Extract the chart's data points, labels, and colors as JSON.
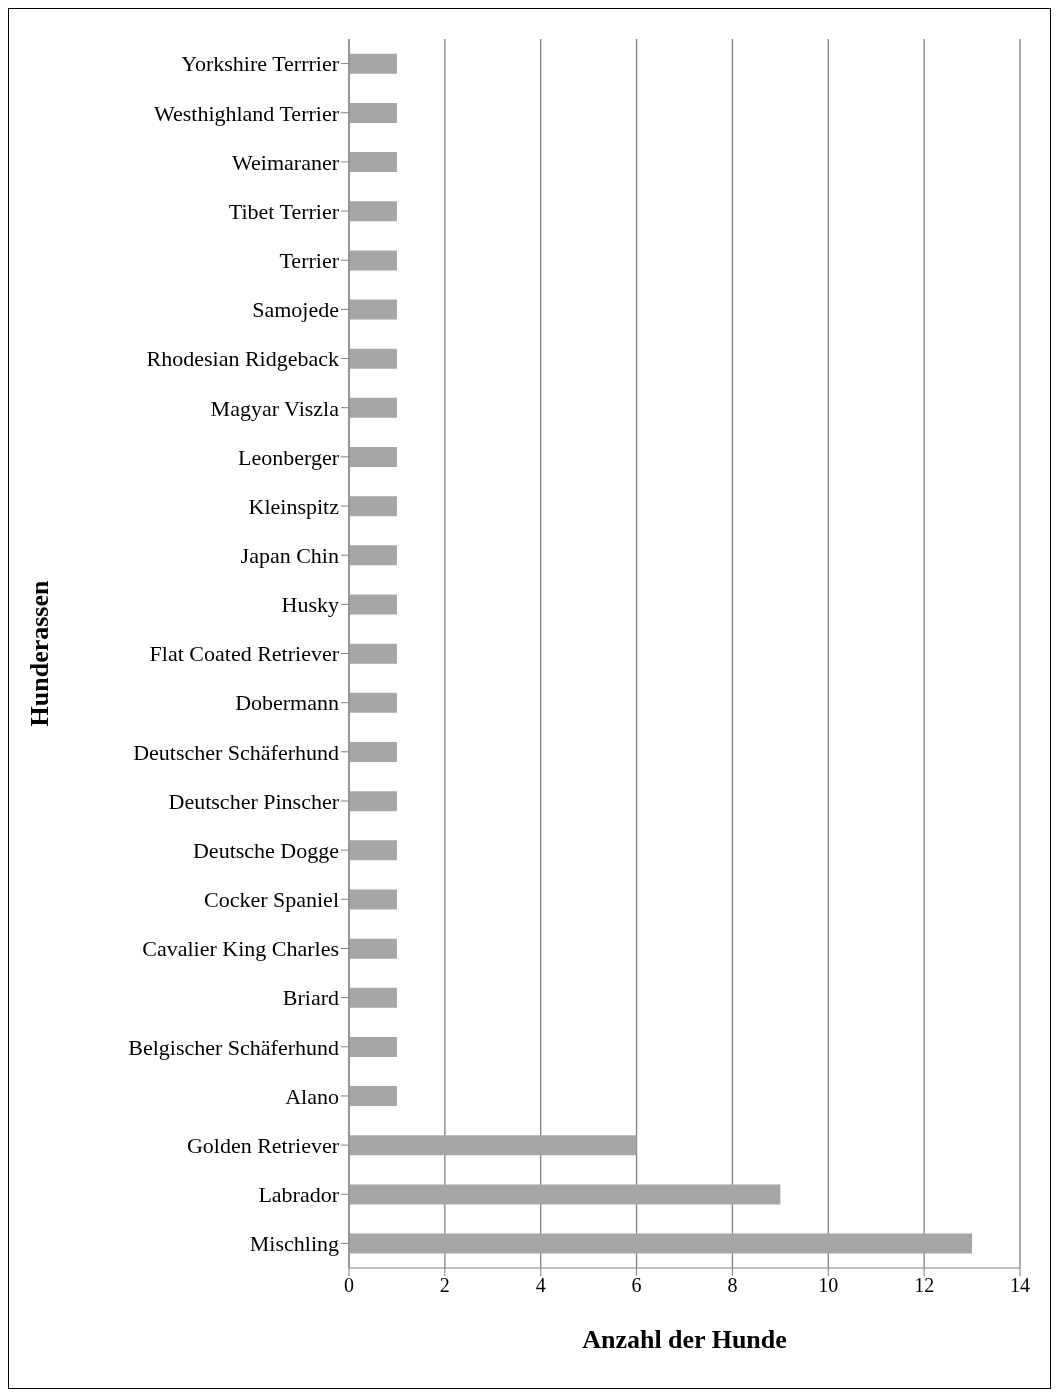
{
  "chart_data": {
    "type": "bar",
    "orientation": "horizontal",
    "xlabel": "Anzahl der Hunde",
    "ylabel": "Hunderassen",
    "categories": [
      "Yorkshire Terrrier",
      "Westhighland Terrier",
      "Weimaraner",
      "Tibet Terrier",
      "Terrier",
      "Samojede",
      "Rhodesian Ridgeback",
      "Magyar Viszla",
      "Leonberger",
      "Kleinspitz",
      "Japan Chin",
      "Husky",
      "Flat Coated Retriever",
      "Dobermann",
      "Deutscher Schäferhund",
      "Deutscher Pinscher",
      "Deutsche Dogge",
      "Cocker Spaniel",
      "Cavalier King Charles",
      "Briard",
      "Belgischer Schäferhund",
      "Alano",
      "Golden Retriever",
      "Labrador",
      "Mischling"
    ],
    "values": [
      1,
      1,
      1,
      1,
      1,
      1,
      1,
      1,
      1,
      1,
      1,
      1,
      1,
      1,
      1,
      1,
      1,
      1,
      1,
      1,
      1,
      1,
      6,
      9,
      13
    ],
    "color": "#a6a6a6",
    "xlim": [
      0,
      14
    ],
    "xticks": [
      0,
      2,
      4,
      6,
      8,
      10,
      12,
      14
    ],
    "grid": "x"
  }
}
